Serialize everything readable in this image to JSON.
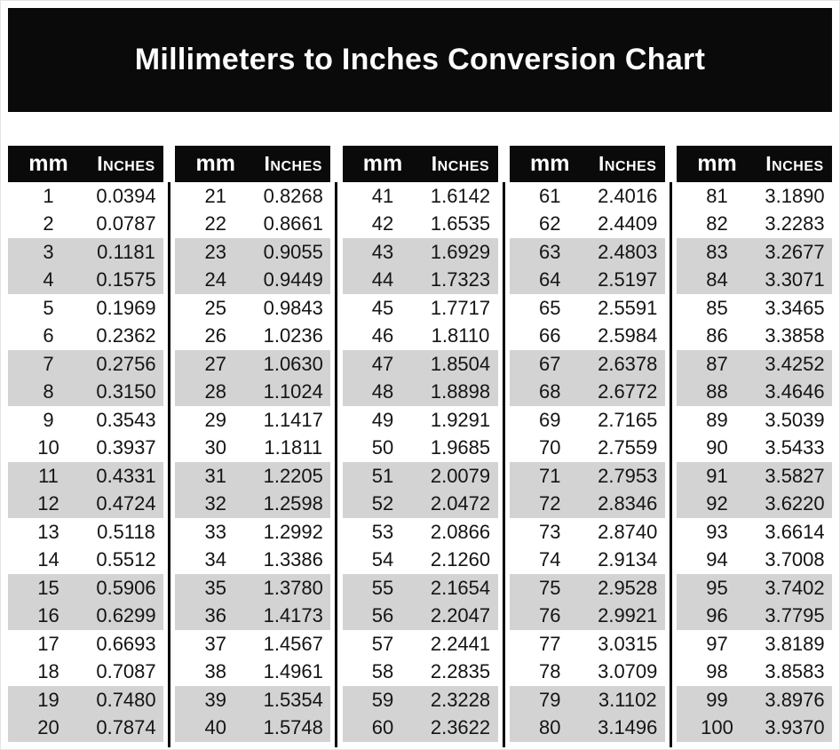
{
  "title": "Millimeters to Inches Conversion Chart",
  "headers": {
    "mm": "mm",
    "inches": "Inches"
  },
  "colors": {
    "banner": "#0a0a0a",
    "header": "#0a0a0a",
    "header_text": "#ffffff",
    "stripe": "#d3d3d3",
    "body_text": "#141414"
  },
  "tables": [
    {
      "rows": [
        {
          "mm": "1",
          "in": "0.0394"
        },
        {
          "mm": "2",
          "in": "0.0787"
        },
        {
          "mm": "3",
          "in": "0.1181"
        },
        {
          "mm": "4",
          "in": "0.1575"
        },
        {
          "mm": "5",
          "in": "0.1969"
        },
        {
          "mm": "6",
          "in": "0.2362"
        },
        {
          "mm": "7",
          "in": "0.2756"
        },
        {
          "mm": "8",
          "in": "0.3150"
        },
        {
          "mm": "9",
          "in": "0.3543"
        },
        {
          "mm": "10",
          "in": "0.3937"
        },
        {
          "mm": "11",
          "in": "0.4331"
        },
        {
          "mm": "12",
          "in": "0.4724"
        },
        {
          "mm": "13",
          "in": "0.5118"
        },
        {
          "mm": "14",
          "in": "0.5512"
        },
        {
          "mm": "15",
          "in": "0.5906"
        },
        {
          "mm": "16",
          "in": "0.6299"
        },
        {
          "mm": "17",
          "in": "0.6693"
        },
        {
          "mm": "18",
          "in": "0.7087"
        },
        {
          "mm": "19",
          "in": "0.7480"
        },
        {
          "mm": "20",
          "in": "0.7874"
        }
      ]
    },
    {
      "rows": [
        {
          "mm": "21",
          "in": "0.8268"
        },
        {
          "mm": "22",
          "in": "0.8661"
        },
        {
          "mm": "23",
          "in": "0.9055"
        },
        {
          "mm": "24",
          "in": "0.9449"
        },
        {
          "mm": "25",
          "in": "0.9843"
        },
        {
          "mm": "26",
          "in": "1.0236"
        },
        {
          "mm": "27",
          "in": "1.0630"
        },
        {
          "mm": "28",
          "in": "1.1024"
        },
        {
          "mm": "29",
          "in": "1.1417"
        },
        {
          "mm": "30",
          "in": "1.1811"
        },
        {
          "mm": "31",
          "in": "1.2205"
        },
        {
          "mm": "32",
          "in": "1.2598"
        },
        {
          "mm": "33",
          "in": "1.2992"
        },
        {
          "mm": "34",
          "in": "1.3386"
        },
        {
          "mm": "35",
          "in": "1.3780"
        },
        {
          "mm": "36",
          "in": "1.4173"
        },
        {
          "mm": "37",
          "in": "1.4567"
        },
        {
          "mm": "38",
          "in": "1.4961"
        },
        {
          "mm": "39",
          "in": "1.5354"
        },
        {
          "mm": "40",
          "in": "1.5748"
        }
      ]
    },
    {
      "rows": [
        {
          "mm": "41",
          "in": "1.6142"
        },
        {
          "mm": "42",
          "in": "1.6535"
        },
        {
          "mm": "43",
          "in": "1.6929"
        },
        {
          "mm": "44",
          "in": "1.7323"
        },
        {
          "mm": "45",
          "in": "1.7717"
        },
        {
          "mm": "46",
          "in": "1.8110"
        },
        {
          "mm": "47",
          "in": "1.8504"
        },
        {
          "mm": "48",
          "in": "1.8898"
        },
        {
          "mm": "49",
          "in": "1.9291"
        },
        {
          "mm": "50",
          "in": "1.9685"
        },
        {
          "mm": "51",
          "in": "2.0079"
        },
        {
          "mm": "52",
          "in": "2.0472"
        },
        {
          "mm": "53",
          "in": "2.0866"
        },
        {
          "mm": "54",
          "in": "2.1260"
        },
        {
          "mm": "55",
          "in": "2.1654"
        },
        {
          "mm": "56",
          "in": "2.2047"
        },
        {
          "mm": "57",
          "in": "2.2441"
        },
        {
          "mm": "58",
          "in": "2.2835"
        },
        {
          "mm": "59",
          "in": "2.3228"
        },
        {
          "mm": "60",
          "in": "2.3622"
        }
      ]
    },
    {
      "rows": [
        {
          "mm": "61",
          "in": "2.4016"
        },
        {
          "mm": "62",
          "in": "2.4409"
        },
        {
          "mm": "63",
          "in": "2.4803"
        },
        {
          "mm": "64",
          "in": "2.5197"
        },
        {
          "mm": "65",
          "in": "2.5591"
        },
        {
          "mm": "66",
          "in": "2.5984"
        },
        {
          "mm": "67",
          "in": "2.6378"
        },
        {
          "mm": "68",
          "in": "2.6772"
        },
        {
          "mm": "69",
          "in": "2.7165"
        },
        {
          "mm": "70",
          "in": "2.7559"
        },
        {
          "mm": "71",
          "in": "2.7953"
        },
        {
          "mm": "72",
          "in": "2.8346"
        },
        {
          "mm": "73",
          "in": "2.8740"
        },
        {
          "mm": "74",
          "in": "2.9134"
        },
        {
          "mm": "75",
          "in": "2.9528"
        },
        {
          "mm": "76",
          "in": "2.9921"
        },
        {
          "mm": "77",
          "in": "3.0315"
        },
        {
          "mm": "78",
          "in": "3.0709"
        },
        {
          "mm": "79",
          "in": "3.1102"
        },
        {
          "mm": "80",
          "in": "3.1496"
        }
      ]
    },
    {
      "rows": [
        {
          "mm": "81",
          "in": "3.1890"
        },
        {
          "mm": "82",
          "in": "3.2283"
        },
        {
          "mm": "83",
          "in": "3.2677"
        },
        {
          "mm": "84",
          "in": "3.3071"
        },
        {
          "mm": "85",
          "in": "3.3465"
        },
        {
          "mm": "86",
          "in": "3.3858"
        },
        {
          "mm": "87",
          "in": "3.4252"
        },
        {
          "mm": "88",
          "in": "3.4646"
        },
        {
          "mm": "89",
          "in": "3.5039"
        },
        {
          "mm": "90",
          "in": "3.5433"
        },
        {
          "mm": "91",
          "in": "3.5827"
        },
        {
          "mm": "92",
          "in": "3.6220"
        },
        {
          "mm": "93",
          "in": "3.6614"
        },
        {
          "mm": "94",
          "in": "3.7008"
        },
        {
          "mm": "95",
          "in": "3.7402"
        },
        {
          "mm": "96",
          "in": "3.7795"
        },
        {
          "mm": "97",
          "in": "3.8189"
        },
        {
          "mm": "98",
          "in": "3.8583"
        },
        {
          "mm": "99",
          "in": "3.8976"
        },
        {
          "mm": "100",
          "in": "3.9370"
        }
      ]
    }
  ]
}
